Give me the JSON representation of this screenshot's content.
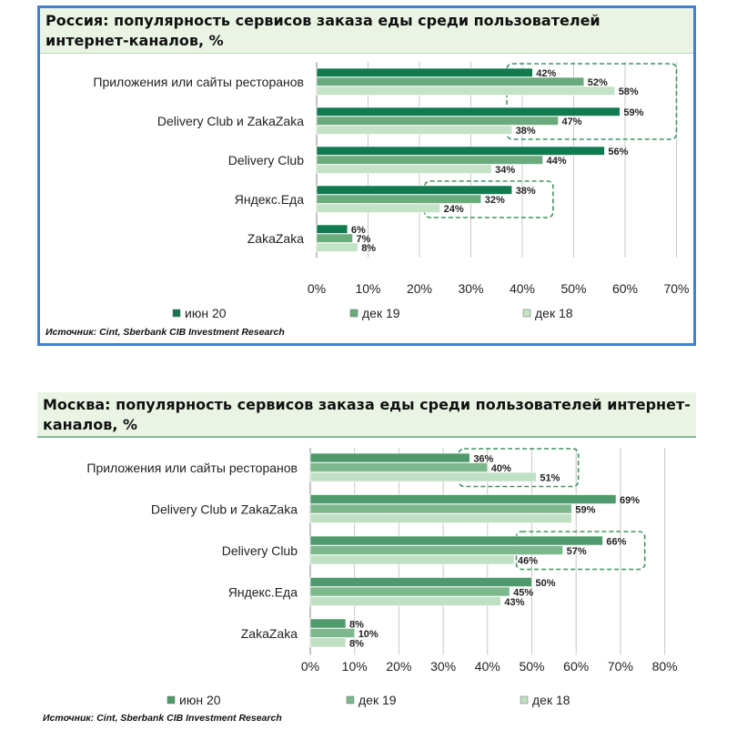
{
  "source": "Источник: Cint, Sberbank CIB Investment Research",
  "colors": {
    "jun20": "#117a4f",
    "dec19": "#6aab7d",
    "dec18": "#c3e2c6",
    "jun20_m": "#4e9a6c",
    "dec19_m": "#7cb88c",
    "dec18_m": "#bfe0c3",
    "grid": "#c8c8c8",
    "highlight": "#3f9464"
  },
  "chart_data": [
    {
      "type": "bar",
      "orientation": "horizontal",
      "title": "Россия: популярность сервисов заказа еды среди пользователей интернет-каналов, %",
      "categories": [
        "Приложения или сайты ресторанов",
        "Delivery Club и ZakaZaka",
        "Delivery Club",
        "Яндекс.Еда",
        "ZakaZaka"
      ],
      "series": [
        {
          "name": "июн 20",
          "values": [
            42,
            59,
            56,
            38,
            6
          ],
          "labels": [
            "42%",
            "59%",
            "56%",
            "38%",
            "6%"
          ]
        },
        {
          "name": "дек 19",
          "values": [
            52,
            47,
            44,
            32,
            7
          ],
          "labels": [
            "52%",
            "47%",
            "44%",
            "32%",
            "7%"
          ]
        },
        {
          "name": "дек 18",
          "values": [
            58,
            38,
            34,
            24,
            8
          ],
          "labels": [
            "58%",
            "38%",
            "34%",
            "24%",
            "8%"
          ]
        }
      ],
      "xlim": [
        0,
        70
      ],
      "ticks": [
        "0%",
        "10%",
        "20%",
        "30%",
        "40%",
        "50%",
        "60%",
        "70%"
      ],
      "grid": true,
      "legend": "bottom",
      "highlight_groups": [
        {
          "categories": [
            "Приложения или сайты ресторанов",
            "Delivery Club и ZakaZaka"
          ],
          "from_value": 37,
          "to_value": 70
        },
        {
          "categories": [
            "Яндекс.Еда"
          ],
          "from_value": 21,
          "to_value": 46
        }
      ]
    },
    {
      "type": "bar",
      "orientation": "horizontal",
      "title": "Москва: популярность сервисов заказа еды среди пользователей интернет-каналов, %",
      "categories": [
        "Приложения или сайты ресторанов",
        "Delivery Club и ZakaZaka",
        "Delivery Club",
        "Яндекс.Еда",
        "ZakaZaka"
      ],
      "series": [
        {
          "name": "июн 20",
          "values": [
            36,
            69,
            66,
            50,
            8
          ],
          "labels": [
            "36%",
            "69%",
            "66%",
            "50%",
            "8%"
          ]
        },
        {
          "name": "дек 19",
          "values": [
            40,
            59,
            57,
            45,
            10
          ],
          "labels": [
            "40%",
            "59%",
            "57%",
            "45%",
            "10%"
          ]
        },
        {
          "name": "дек 18",
          "values": [
            51,
            59,
            46,
            43,
            8
          ],
          "labels": [
            "51%",
            "",
            "46%",
            "43%",
            "8%"
          ]
        }
      ],
      "xlim": [
        0,
        80
      ],
      "ticks": [
        "0%",
        "10%",
        "20%",
        "30%",
        "40%",
        "50%",
        "60%",
        "70%",
        "80%"
      ],
      "grid": true,
      "legend": "bottom",
      "highlight_groups": [
        {
          "categories": [
            "Приложения или сайты ресторанов"
          ],
          "from_value": 33.5,
          "to_value": 60.5
        },
        {
          "categories": [
            "Delivery Club"
          ],
          "from_value": 46.5,
          "to_value": 75.5
        }
      ]
    }
  ]
}
